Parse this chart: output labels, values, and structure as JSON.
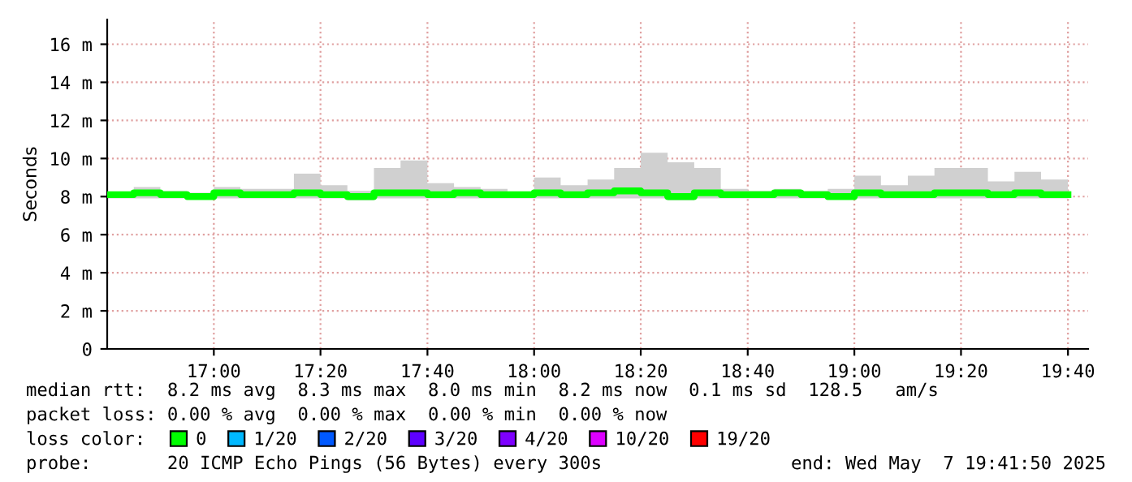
{
  "chart_data": {
    "type": "step",
    "ylabel": "Seconds",
    "x": [
      16.667,
      16.75,
      16.833,
      16.917,
      17,
      17.083,
      17.167,
      17.25,
      17.333,
      17.417,
      17.5,
      17.583,
      17.667,
      17.75,
      17.833,
      17.917,
      18,
      18.083,
      18.167,
      18.25,
      18.333,
      18.417,
      18.5,
      18.583,
      18.667,
      18.75,
      18.833,
      18.917,
      19,
      19.083,
      19.167,
      19.25,
      19.333,
      19.417,
      19.5,
      19.583,
      19.667
    ],
    "series": [
      {
        "name": "0",
        "color": "#00ff00",
        "values": [
          8.1,
          8.2,
          8.1,
          8.0,
          8.2,
          8.1,
          8.1,
          8.2,
          8.1,
          8.0,
          8.2,
          8.2,
          8.1,
          8.2,
          8.1,
          8.1,
          8.2,
          8.1,
          8.2,
          8.3,
          8.2,
          8.0,
          8.2,
          8.1,
          8.1,
          8.2,
          8.1,
          8.0,
          8.2,
          8.1,
          8.1,
          8.2,
          8.2,
          8.1,
          8.2,
          8.1,
          8.1
        ],
        "lower": [
          7.9,
          7.9,
          7.9,
          7.9,
          7.9,
          7.9,
          7.9,
          7.9,
          7.9,
          7.8,
          7.9,
          7.9,
          7.9,
          7.9,
          7.9,
          7.9,
          7.9,
          7.9,
          7.9,
          7.9,
          7.9,
          7.8,
          7.9,
          7.9,
          7.9,
          7.9,
          7.9,
          7.9,
          7.9,
          7.9,
          7.9,
          7.9,
          7.9,
          7.9,
          7.9,
          7.9,
          7.9
        ],
        "upper": [
          8.2,
          8.5,
          8.3,
          8.2,
          8.5,
          8.4,
          8.4,
          9.2,
          8.6,
          8.3,
          9.5,
          9.9,
          8.7,
          8.5,
          8.4,
          8.2,
          9.0,
          8.6,
          8.9,
          9.5,
          10.3,
          9.8,
          9.5,
          8.4,
          8.3,
          8.4,
          8.3,
          8.4,
          9.1,
          8.6,
          9.1,
          9.5,
          9.5,
          8.8,
          9.3,
          8.9,
          8.9
        ]
      },
      {
        "name": "1/20",
        "color": "#00b8ff",
        "values": [
          null,
          null,
          null,
          null,
          null,
          null,
          null,
          null,
          null,
          null,
          null,
          null,
          null,
          null,
          null,
          null,
          null,
          null,
          null,
          null,
          null,
          null,
          null,
          null,
          null,
          null,
          null,
          null,
          null,
          null,
          null,
          null,
          null,
          null,
          null,
          null,
          null
        ]
      },
      {
        "name": "2/20",
        "color": "#0059ff",
        "values": [
          null,
          null,
          null,
          null,
          null,
          null,
          null,
          null,
          null,
          null,
          null,
          null,
          null,
          null,
          null,
          null,
          null,
          null,
          null,
          null,
          null,
          null,
          null,
          null,
          null,
          null,
          null,
          null,
          null,
          null,
          null,
          null,
          null,
          null,
          null,
          null,
          null
        ]
      },
      {
        "name": "3/20",
        "color": "#5e00ff",
        "values": [
          null,
          null,
          null,
          null,
          null,
          null,
          null,
          null,
          null,
          null,
          null,
          null,
          null,
          null,
          null,
          null,
          null,
          null,
          null,
          null,
          null,
          null,
          null,
          null,
          null,
          null,
          null,
          null,
          null,
          null,
          null,
          null,
          null,
          null,
          null,
          null,
          null
        ]
      },
      {
        "name": "4/20",
        "color": "#7e00ff",
        "values": [
          null,
          null,
          null,
          null,
          null,
          null,
          null,
          null,
          null,
          null,
          null,
          null,
          null,
          null,
          null,
          null,
          null,
          null,
          null,
          null,
          null,
          null,
          null,
          null,
          null,
          null,
          null,
          null,
          null,
          null,
          null,
          null,
          null,
          null,
          null,
          null,
          null
        ]
      },
      {
        "name": "10/20",
        "color": "#dd00ff",
        "values": [
          null,
          null,
          null,
          null,
          null,
          null,
          null,
          null,
          null,
          null,
          null,
          null,
          null,
          null,
          null,
          null,
          null,
          null,
          null,
          null,
          null,
          null,
          null,
          null,
          null,
          null,
          null,
          null,
          null,
          null,
          null,
          null,
          null,
          null,
          null,
          null,
          null
        ]
      },
      {
        "name": "19/20",
        "color": "#ff0000",
        "values": [
          null,
          null,
          null,
          null,
          null,
          null,
          null,
          null,
          null,
          null,
          null,
          null,
          null,
          null,
          null,
          null,
          null,
          null,
          null,
          null,
          null,
          null,
          null,
          null,
          null,
          null,
          null,
          null,
          null,
          null,
          null,
          null,
          null,
          null,
          null,
          null,
          null
        ]
      }
    ],
    "xlim": [
      16.667,
      19.73
    ],
    "xticks": [
      {
        "value": 17,
        "label": "17:00"
      },
      {
        "value": 17.333,
        "label": "17:20"
      },
      {
        "value": 17.667,
        "label": "17:40"
      },
      {
        "value": 18,
        "label": "18:00"
      },
      {
        "value": 18.333,
        "label": "18:20"
      },
      {
        "value": 18.667,
        "label": "18:40"
      },
      {
        "value": 19,
        "label": "19:00"
      },
      {
        "value": 19.333,
        "label": "19:20"
      },
      {
        "value": 19.667,
        "label": "19:40"
      }
    ],
    "ylim": [
      0,
      17.3
    ],
    "yticks": [
      0,
      {
        "value": 2,
        "label": "2 m"
      },
      {
        "value": 4,
        "label": "4 m"
      },
      {
        "value": 6,
        "label": "6 m"
      },
      {
        "value": 8,
        "label": "8 m"
      },
      {
        "value": 10,
        "label": "10 m"
      },
      {
        "value": 12,
        "label": "12 m"
      },
      {
        "value": 14,
        "label": "14 m"
      },
      {
        "value": 16,
        "label": "16 m"
      }
    ],
    "grid": true,
    "legend": "bottom",
    "annotations": [
      "median rtt:  8.2 ms avg  8.3 ms max  8.0 ms min  8.2 ms now  0.1 ms sd  128.5   am/s",
      "packet loss: 0.00 % avg  0.00 % max  0.00 % min  0.00 % now",
      "loss color:",
      "probe:       20 ICMP Echo Pings (56 Bytes) every 300s",
      "end: Wed May  7 19:41:50 2025"
    ]
  }
}
